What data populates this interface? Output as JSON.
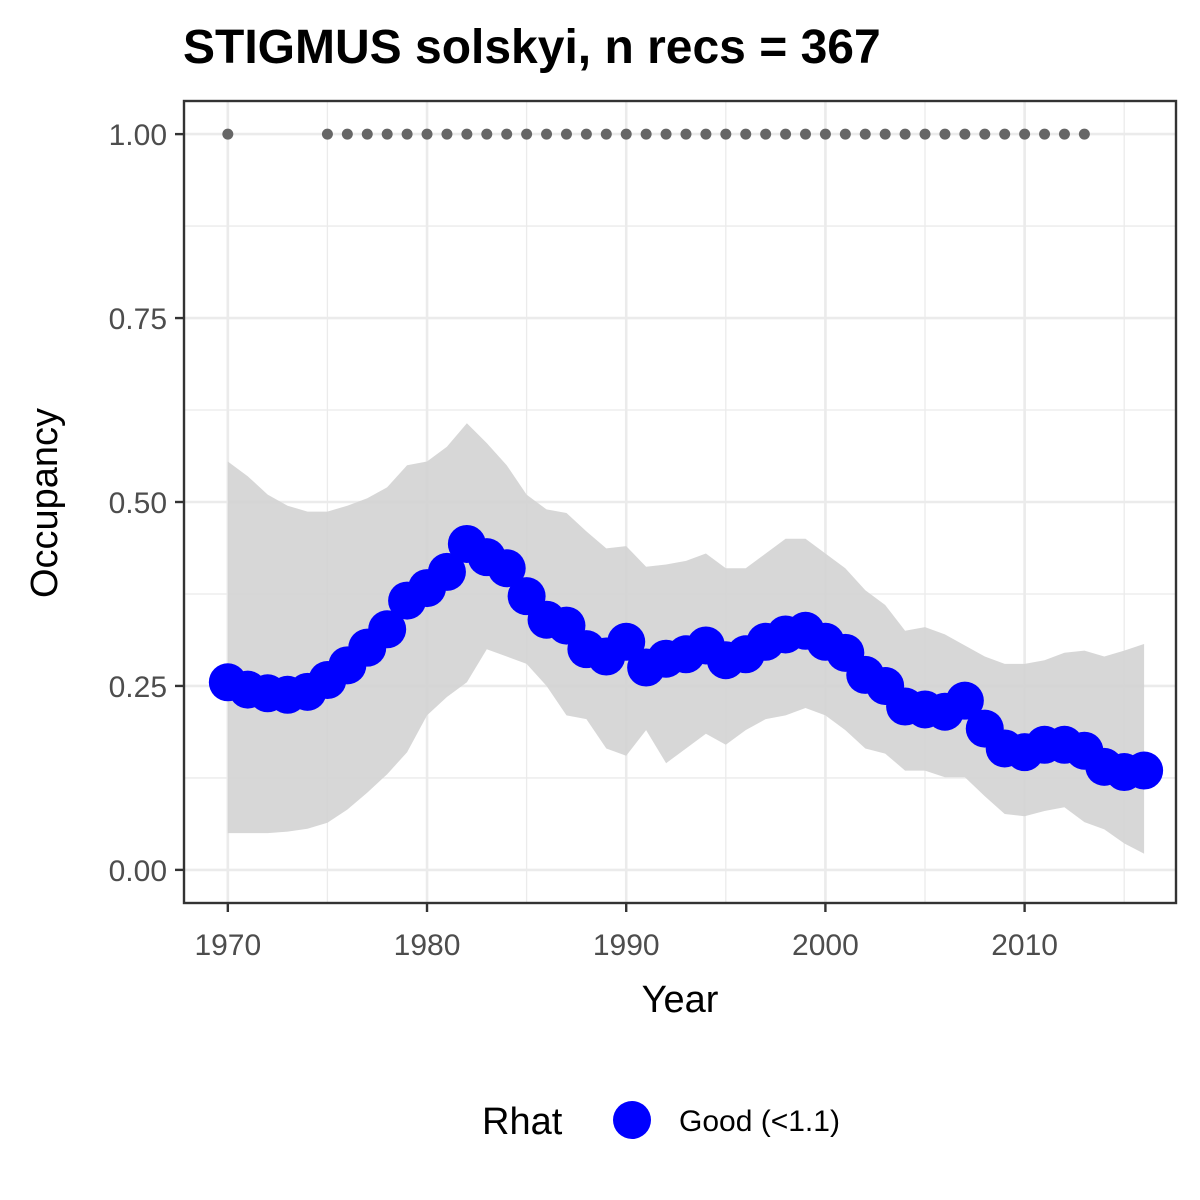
{
  "chart_data": {
    "type": "line",
    "title": "STIGMUS solskyi, n recs = 367",
    "xlabel": "Year",
    "ylabel": "Occupancy",
    "xlim": [
      1967.8,
      2017.6
    ],
    "ylim": [
      -0.045,
      1.045
    ],
    "x_ticks": [
      1970,
      1980,
      1990,
      2000,
      2010
    ],
    "x_tick_labels": [
      "1970",
      "1980",
      "1990",
      "2000",
      "2010"
    ],
    "y_ticks": [
      0,
      0.25,
      0.5,
      0.75,
      1
    ],
    "y_tick_labels": [
      "0.00",
      "0.25",
      "0.50",
      "0.75",
      "1.00"
    ],
    "grid": true,
    "legend": {
      "position": "bottom",
      "title": "Rhat",
      "entries": [
        "Good (<1.1)"
      ]
    },
    "colors": {
      "series": "#0000ff",
      "ribbon": "#d3d3d3",
      "records": "#666666",
      "grid": "#ebebeb",
      "frame": "#333333"
    },
    "x": [
      1970,
      1971,
      1972,
      1973,
      1974,
      1975,
      1976,
      1977,
      1978,
      1979,
      1980,
      1981,
      1982,
      1983,
      1984,
      1985,
      1986,
      1987,
      1988,
      1989,
      1990,
      1991,
      1992,
      1993,
      1994,
      1995,
      1996,
      1997,
      1998,
      1999,
      2000,
      2001,
      2002,
      2003,
      2004,
      2005,
      2006,
      2007,
      2008,
      2009,
      2010,
      2011,
      2012,
      2013,
      2014,
      2015,
      2016
    ],
    "series": [
      {
        "name": "Good (<1.1)",
        "values": [
          0.255,
          0.245,
          0.24,
          0.238,
          0.242,
          0.258,
          0.278,
          0.302,
          0.327,
          0.366,
          0.383,
          0.405,
          0.443,
          0.425,
          0.41,
          0.372,
          0.34,
          0.332,
          0.3,
          0.29,
          0.31,
          0.275,
          0.287,
          0.293,
          0.305,
          0.285,
          0.293,
          0.31,
          0.32,
          0.325,
          0.31,
          0.295,
          0.265,
          0.25,
          0.222,
          0.218,
          0.215,
          0.23,
          0.192,
          0.165,
          0.16,
          0.17,
          0.17,
          0.162,
          0.14,
          0.133,
          0.135
        ]
      }
    ],
    "ribbon": {
      "lower": [
        0.05,
        0.05,
        0.05,
        0.052,
        0.056,
        0.064,
        0.082,
        0.105,
        0.13,
        0.16,
        0.21,
        0.235,
        0.255,
        0.3,
        0.29,
        0.28,
        0.25,
        0.21,
        0.205,
        0.165,
        0.155,
        0.19,
        0.145,
        0.165,
        0.185,
        0.17,
        0.19,
        0.205,
        0.21,
        0.22,
        0.21,
        0.19,
        0.165,
        0.158,
        0.135,
        0.135,
        0.126,
        0.126,
        0.1,
        0.076,
        0.073,
        0.08,
        0.085,
        0.065,
        0.055,
        0.036,
        0.022
      ],
      "upper": [
        0.555,
        0.535,
        0.51,
        0.495,
        0.487,
        0.487,
        0.495,
        0.505,
        0.52,
        0.55,
        0.555,
        0.575,
        0.607,
        0.58,
        0.55,
        0.51,
        0.49,
        0.485,
        0.46,
        0.437,
        0.44,
        0.412,
        0.415,
        0.42,
        0.43,
        0.41,
        0.41,
        0.43,
        0.45,
        0.45,
        0.43,
        0.41,
        0.38,
        0.36,
        0.325,
        0.33,
        0.32,
        0.305,
        0.29,
        0.28,
        0.28,
        0.285,
        0.295,
        0.298,
        0.29,
        0.298,
        0.307
      ]
    },
    "records": {
      "y": 1.0,
      "years": [
        1970,
        1975,
        1976,
        1977,
        1978,
        1979,
        1980,
        1981,
        1982,
        1983,
        1984,
        1985,
        1986,
        1987,
        1988,
        1989,
        1990,
        1991,
        1992,
        1993,
        1994,
        1995,
        1996,
        1997,
        1998,
        1999,
        2000,
        2001,
        2002,
        2003,
        2004,
        2005,
        2006,
        2007,
        2008,
        2009,
        2010,
        2011,
        2012,
        2013
      ]
    }
  }
}
